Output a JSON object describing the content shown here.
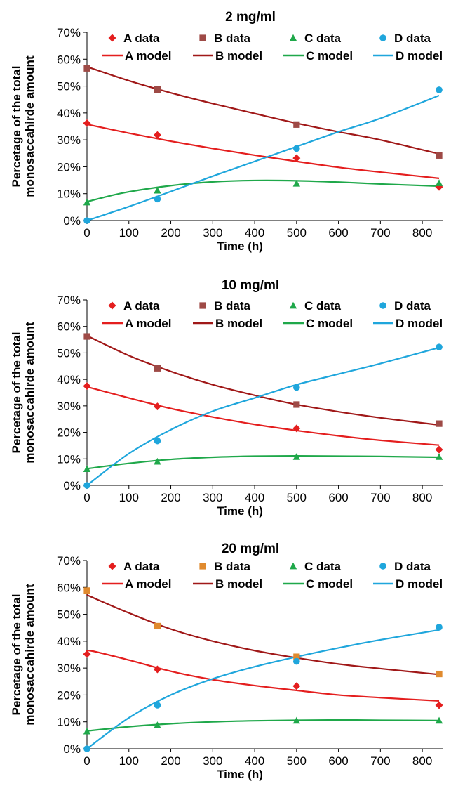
{
  "chart_data": [
    {
      "type": "scatter",
      "title": "2 mg/ml",
      "xlabel": "Time (h)",
      "ylabel_lines": [
        "Percetage of the total",
        "monosaccahirde amount"
      ],
      "xlim": [
        0,
        850
      ],
      "ylim": [
        0,
        0.7
      ],
      "xticks": [
        0,
        100,
        200,
        300,
        400,
        500,
        600,
        700,
        800
      ],
      "yticks": [
        "0%",
        "10%",
        "20%",
        "30%",
        "40%",
        "50%",
        "60%",
        "70%"
      ],
      "grid": false,
      "legend": "top",
      "series": [
        {
          "name": "A data",
          "kind": "marker",
          "marker": "diamond",
          "color": "#e41e1e",
          "x": [
            0,
            168,
            500,
            840
          ],
          "values": [
            0.362,
            0.318,
            0.232,
            0.125
          ]
        },
        {
          "name": "B data",
          "kind": "marker",
          "marker": "square",
          "color": "#9e4a46",
          "x": [
            0,
            168,
            500,
            840
          ],
          "values": [
            0.566,
            0.487,
            0.357,
            0.242
          ]
        },
        {
          "name": "C data",
          "kind": "marker",
          "marker": "triangle",
          "color": "#1fa84a",
          "x": [
            0,
            168,
            500,
            840
          ],
          "values": [
            0.068,
            0.112,
            0.138,
            0.14
          ]
        },
        {
          "name": "D data",
          "kind": "marker",
          "marker": "circle",
          "color": "#1fa6dc",
          "x": [
            0,
            168,
            500,
            840
          ],
          "values": [
            0.0,
            0.08,
            0.268,
            0.486
          ]
        },
        {
          "name": "A model",
          "kind": "line",
          "color": "#e41e1e",
          "x": [
            0,
            100,
            200,
            300,
            400,
            500,
            600,
            700,
            840
          ],
          "values": [
            0.358,
            0.325,
            0.295,
            0.268,
            0.243,
            0.22,
            0.198,
            0.18,
            0.157
          ]
        },
        {
          "name": "B model",
          "kind": "line",
          "color": "#a01818",
          "x": [
            0,
            100,
            200,
            300,
            400,
            500,
            600,
            700,
            840
          ],
          "values": [
            0.572,
            0.52,
            0.475,
            0.435,
            0.398,
            0.362,
            0.33,
            0.3,
            0.248
          ]
        },
        {
          "name": "C model",
          "kind": "line",
          "color": "#1fa84a",
          "x": [
            0,
            50,
            100,
            200,
            300,
            400,
            500,
            600,
            700,
            840
          ],
          "values": [
            0.07,
            0.09,
            0.107,
            0.13,
            0.144,
            0.149,
            0.148,
            0.143,
            0.136,
            0.128
          ]
        },
        {
          "name": "D model",
          "kind": "line",
          "color": "#1fa6dc",
          "x": [
            0,
            100,
            200,
            300,
            400,
            500,
            600,
            700,
            840
          ],
          "values": [
            0.0,
            0.052,
            0.108,
            0.165,
            0.22,
            0.275,
            0.33,
            0.38,
            0.465
          ]
        }
      ]
    },
    {
      "type": "scatter",
      "title": "10 mg/ml",
      "xlabel": "Time (h)",
      "ylabel_lines": [
        "Percetage of the total",
        "monosaccahirde amount"
      ],
      "xlim": [
        0,
        850
      ],
      "ylim": [
        0,
        0.7
      ],
      "xticks": [
        0,
        100,
        200,
        300,
        400,
        500,
        600,
        700,
        800
      ],
      "yticks": [
        "0%",
        "10%",
        "20%",
        "30%",
        "40%",
        "50%",
        "60%",
        "70%"
      ],
      "grid": false,
      "legend": "top",
      "series": [
        {
          "name": "A data",
          "kind": "marker",
          "marker": "diamond",
          "color": "#e41e1e",
          "x": [
            0,
            168,
            500,
            840
          ],
          "values": [
            0.375,
            0.298,
            0.215,
            0.135
          ]
        },
        {
          "name": "B data",
          "kind": "marker",
          "marker": "square",
          "color": "#9e4a46",
          "x": [
            0,
            168,
            500,
            840
          ],
          "values": [
            0.562,
            0.442,
            0.305,
            0.233
          ]
        },
        {
          "name": "C data",
          "kind": "marker",
          "marker": "triangle",
          "color": "#1fa84a",
          "x": [
            0,
            168,
            500,
            840
          ],
          "values": [
            0.062,
            0.09,
            0.108,
            0.108
          ]
        },
        {
          "name": "D data",
          "kind": "marker",
          "marker": "circle",
          "color": "#1fa6dc",
          "x": [
            0,
            168,
            500,
            840
          ],
          "values": [
            0.0,
            0.168,
            0.37,
            0.522
          ]
        },
        {
          "name": "A model",
          "kind": "line",
          "color": "#e41e1e",
          "x": [
            0,
            100,
            200,
            300,
            400,
            500,
            600,
            700,
            840
          ],
          "values": [
            0.372,
            0.33,
            0.29,
            0.258,
            0.23,
            0.207,
            0.187,
            0.17,
            0.152
          ]
        },
        {
          "name": "B model",
          "kind": "line",
          "color": "#a01818",
          "x": [
            0,
            100,
            200,
            300,
            400,
            500,
            600,
            700,
            840
          ],
          "values": [
            0.565,
            0.49,
            0.43,
            0.38,
            0.34,
            0.305,
            0.278,
            0.255,
            0.228
          ]
        },
        {
          "name": "C model",
          "kind": "line",
          "color": "#1fa84a",
          "x": [
            0,
            100,
            200,
            300,
            400,
            500,
            600,
            700,
            840
          ],
          "values": [
            0.063,
            0.083,
            0.098,
            0.106,
            0.11,
            0.111,
            0.11,
            0.109,
            0.106
          ]
        },
        {
          "name": "D model",
          "kind": "line",
          "color": "#1fa6dc",
          "x": [
            0,
            100,
            200,
            300,
            400,
            500,
            600,
            700,
            840
          ],
          "values": [
            0.0,
            0.12,
            0.21,
            0.28,
            0.33,
            0.38,
            0.42,
            0.46,
            0.52
          ]
        }
      ]
    },
    {
      "type": "scatter",
      "title": "20 mg/ml",
      "xlabel": "Time (h)",
      "ylabel_lines": [
        "Percetage of the total",
        "monosaccahirde amount"
      ],
      "xlim": [
        0,
        850
      ],
      "ylim": [
        0,
        0.7
      ],
      "xticks": [
        0,
        100,
        200,
        300,
        400,
        500,
        600,
        700,
        800
      ],
      "yticks": [
        "0%",
        "10%",
        "20%",
        "30%",
        "40%",
        "50%",
        "60%",
        "70%"
      ],
      "grid": false,
      "legend": "top",
      "series": [
        {
          "name": "A data",
          "kind": "marker",
          "marker": "diamond",
          "color": "#e41e1e",
          "x": [
            0,
            168,
            500,
            840
          ],
          "values": [
            0.352,
            0.295,
            0.233,
            0.162
          ]
        },
        {
          "name": "B data",
          "kind": "marker",
          "marker": "square",
          "color": "#e08a2e",
          "x": [
            0,
            168,
            500,
            840
          ],
          "values": [
            0.588,
            0.456,
            0.342,
            0.278
          ]
        },
        {
          "name": "C data",
          "kind": "marker",
          "marker": "triangle",
          "color": "#1fa84a",
          "x": [
            0,
            168,
            500,
            840
          ],
          "values": [
            0.065,
            0.088,
            0.105,
            0.105
          ]
        },
        {
          "name": "D data",
          "kind": "marker",
          "marker": "circle",
          "color": "#1fa6dc",
          "x": [
            0,
            168,
            500,
            840
          ],
          "values": [
            0.0,
            0.162,
            0.325,
            0.452
          ]
        },
        {
          "name": "A model",
          "kind": "line",
          "color": "#e41e1e",
          "x": [
            0,
            10,
            100,
            200,
            300,
            400,
            500,
            600,
            700,
            840
          ],
          "values": [
            0.357,
            0.364,
            0.33,
            0.288,
            0.257,
            0.235,
            0.217,
            0.2,
            0.19,
            0.178
          ]
        },
        {
          "name": "B model",
          "kind": "line",
          "color": "#a01818",
          "x": [
            0,
            10,
            100,
            200,
            300,
            400,
            500,
            600,
            700,
            840
          ],
          "values": [
            0.573,
            0.565,
            0.505,
            0.445,
            0.4,
            0.365,
            0.338,
            0.315,
            0.298,
            0.276
          ]
        },
        {
          "name": "C model",
          "kind": "line",
          "color": "#1fa84a",
          "x": [
            0,
            100,
            200,
            300,
            400,
            500,
            600,
            700,
            840
          ],
          "values": [
            0.066,
            0.082,
            0.093,
            0.1,
            0.104,
            0.106,
            0.107,
            0.106,
            0.105
          ]
        },
        {
          "name": "D model",
          "kind": "line",
          "color": "#1fa6dc",
          "x": [
            0,
            100,
            200,
            300,
            400,
            500,
            600,
            700,
            840
          ],
          "values": [
            0.0,
            0.115,
            0.2,
            0.26,
            0.305,
            0.342,
            0.375,
            0.405,
            0.442
          ]
        }
      ]
    }
  ]
}
